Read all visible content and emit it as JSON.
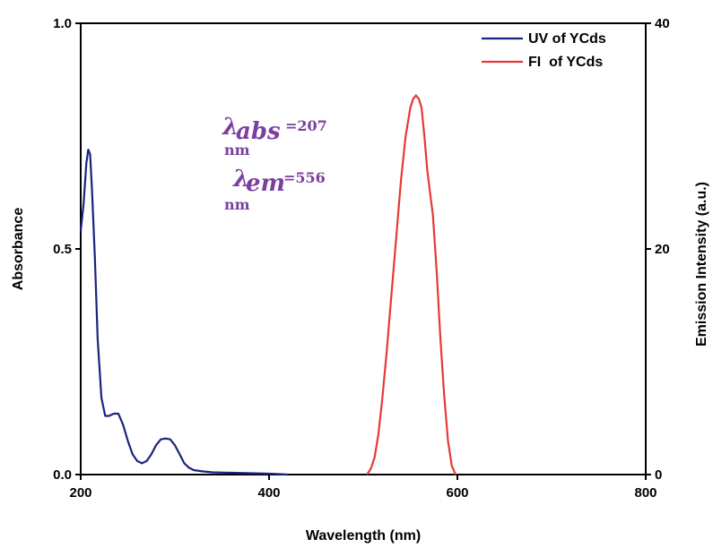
{
  "chart_data": {
    "type": "line",
    "xlabel": "Wavelength (nm)",
    "ylabel_left": "Absorbance",
    "ylabel_right": "Emission Intensity (a.u.)",
    "xlim": [
      200,
      800
    ],
    "ylim_left": [
      0,
      1.0
    ],
    "ylim_right": [
      0,
      40
    ],
    "x_ticks": [
      "200",
      "400",
      "600",
      "800"
    ],
    "y_left_ticks": [
      "0.0",
      "0.5",
      "1.0"
    ],
    "y_right_ticks": [
      "0",
      "20",
      "40"
    ],
    "legend_position": "top-right",
    "colors": {
      "uv": "#1a237e",
      "fl": "#e53935",
      "annotation": "#7b3fa0"
    },
    "series": [
      {
        "name": "UV of YCds",
        "axis": "left",
        "x": [
          200,
          203,
          206,
          208,
          210,
          212,
          215,
          218,
          222,
          226,
          230,
          235,
          240,
          245,
          250,
          255,
          260,
          265,
          270,
          275,
          280,
          285,
          290,
          295,
          300,
          305,
          310,
          315,
          320,
          330,
          340,
          360,
          380,
          400,
          420
        ],
        "y": [
          0.54,
          0.6,
          0.69,
          0.72,
          0.71,
          0.63,
          0.48,
          0.3,
          0.17,
          0.13,
          0.13,
          0.135,
          0.135,
          0.11,
          0.075,
          0.045,
          0.03,
          0.025,
          0.03,
          0.045,
          0.065,
          0.078,
          0.08,
          0.078,
          0.065,
          0.045,
          0.025,
          0.015,
          0.01,
          0.007,
          0.005,
          0.004,
          0.003,
          0.002,
          0.0
        ]
      },
      {
        "name": "FI  of YCds",
        "axis": "right",
        "x": [
          504,
          508,
          512,
          516,
          520,
          525,
          530,
          535,
          540,
          545,
          550,
          553,
          556,
          559,
          562,
          565,
          568,
          571,
          574,
          578,
          582,
          586,
          590,
          594,
          598
        ],
        "y": [
          0.0,
          0.5,
          1.5,
          3.5,
          6.5,
          11.0,
          16.0,
          21.0,
          26.0,
          30.0,
          32.5,
          33.3,
          33.6,
          33.3,
          32.5,
          30.0,
          27.0,
          25.0,
          23.0,
          18.0,
          12.0,
          7.0,
          3.0,
          0.8,
          0.0
        ]
      }
    ],
    "annotations": [
      {
        "symbol": "λ",
        "subscript": "abs",
        "value": "=207",
        "unit": "nm"
      },
      {
        "symbol": "λ",
        "subscript": "em",
        "value": "=556",
        "unit": "nm"
      }
    ]
  }
}
